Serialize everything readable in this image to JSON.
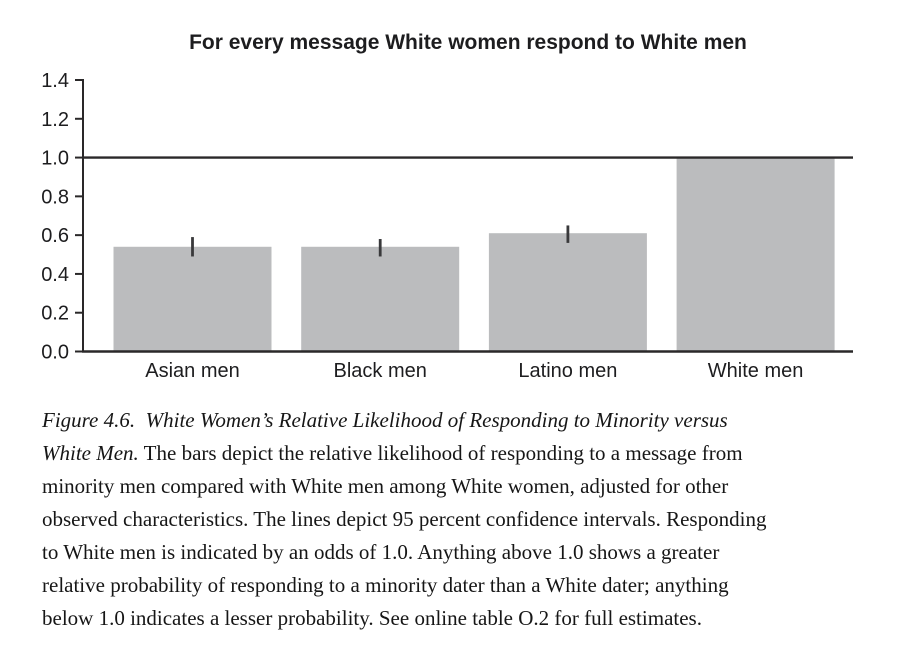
{
  "chart": {
    "title": "For every message White women respond to White men"
  },
  "chart_data": {
    "type": "bar",
    "title": "For every message White women respond to White men",
    "categories": [
      "Asian men",
      "Black men",
      "Latino men",
      "White men"
    ],
    "values": [
      0.54,
      0.54,
      0.61,
      1.0
    ],
    "confidence_intervals": [
      [
        0.49,
        0.59
      ],
      [
        0.49,
        0.58
      ],
      [
        0.56,
        0.65
      ],
      null
    ],
    "reference_line": 1.0,
    "ylim": [
      0.0,
      1.4
    ],
    "ytick_labels": [
      "0.0",
      "0.2",
      "0.4",
      "0.6",
      "0.8",
      "1.0",
      "1.2",
      "1.4"
    ],
    "xlabel": "",
    "ylabel": "",
    "grid": false,
    "legend": false,
    "bar_color": "#bbbcbe",
    "axis_color": "#2a2829",
    "error_bar_color": "#39393b",
    "text_color": "#1d1d1f"
  },
  "caption": {
    "lines": [
      {
        "italic": "Figure 4.6.  White Women’s Relative Likelihood of Responding to Minority versus",
        "regular": ""
      },
      {
        "italic": "White Men.",
        "regular": " The bars depict the relative likelihood of responding to a message from"
      },
      {
        "italic": "",
        "regular": "minority men compared with White men among White women, adjusted for other"
      },
      {
        "italic": "",
        "regular": "observed characteristics. The lines depict 95 percent confidence intervals. Responding"
      },
      {
        "italic": "",
        "regular": "to White men is indicated by an odds of 1.0. Anything above 1.0 shows a greater"
      },
      {
        "italic": "",
        "regular": "relative probability of responding to a minority dater than a White dater; anything"
      },
      {
        "italic": "",
        "regular": "below 1.0 indicates a lesser probability. See online table O.2 for full estimates."
      }
    ]
  }
}
